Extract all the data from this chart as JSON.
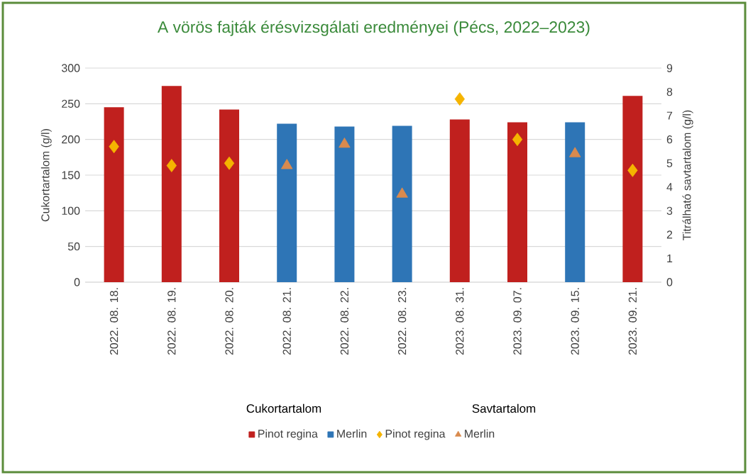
{
  "chart_data": {
    "type": "bar",
    "title": "A vörös fajták érésvizsgálati eredményei (Pécs, 2022–2023)",
    "ylabel": "Cukortartalom (g/l)",
    "y2label": "Titrálható savtartalom (g/l)",
    "categories": [
      "2022. 08. 18.",
      "2022. 08. 19.",
      "2022. 08. 20.",
      "2022. 08. 21.",
      "2022. 08. 22.",
      "2022. 08. 23.",
      "2023. 08. 31.",
      "2023. 09. 07.",
      "2023. 09. 15.",
      "2023. 09. 21."
    ],
    "series": [
      {
        "name": "Pinot regina",
        "color": "#c0201e",
        "values": [
          245,
          275,
          242,
          null,
          null,
          null,
          228,
          224,
          null,
          261
        ]
      },
      {
        "name": "Merlin",
        "color": "#2e75b6",
        "values": [
          null,
          null,
          null,
          222,
          218,
          219,
          null,
          null,
          224,
          null
        ]
      },
      {
        "name": "Pinot regina",
        "type": "scatter",
        "axis": "y2",
        "marker": "diamond",
        "color": "#f5b400",
        "values": [
          5.7,
          4.9,
          5.0,
          null,
          null,
          null,
          7.7,
          6.0,
          null,
          4.7
        ]
      },
      {
        "name": "Merlin",
        "type": "scatter",
        "axis": "y2",
        "marker": "triangle",
        "color": "#d98a4e",
        "values": [
          null,
          null,
          null,
          4.9,
          5.8,
          3.7,
          null,
          null,
          5.4,
          null
        ]
      }
    ],
    "ylim": [
      0,
      300
    ],
    "yticks": [
      0,
      50,
      100,
      150,
      200,
      250,
      300
    ],
    "y2lim": [
      0,
      9
    ],
    "y2ticks": [
      0,
      1,
      2,
      3,
      4,
      5,
      6,
      7,
      8,
      9
    ],
    "grid": "y",
    "legend": "bottom",
    "annotations": [
      "Cukortartalom",
      "Savtartalom"
    ]
  }
}
